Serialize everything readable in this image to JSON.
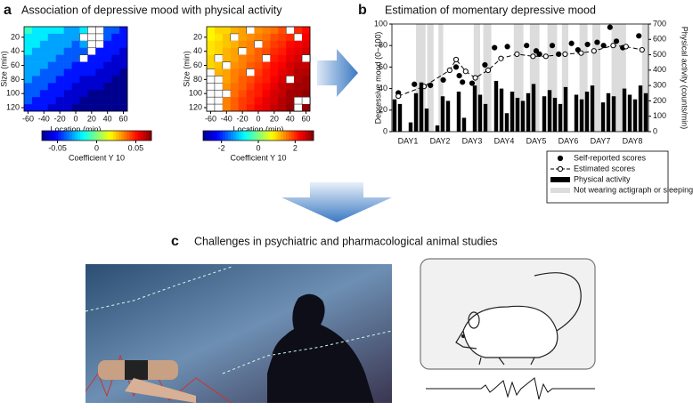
{
  "panels": {
    "a": {
      "label": "a",
      "title": "Association of depressive mood with physical activity"
    },
    "b": {
      "label": "b",
      "title": "Estimation of momentary depressive mood"
    },
    "c": {
      "label": "c",
      "title": "Challenges in psychiatric and pharmacological animal studies"
    }
  },
  "chart_data": [
    {
      "type": "heatmap",
      "x": [
        -60,
        -50,
        -40,
        -30,
        -20,
        -10,
        0,
        10,
        20,
        30,
        40,
        50,
        60
      ],
      "y": [
        10,
        20,
        30,
        40,
        50,
        60,
        70,
        80,
        90,
        100,
        110,
        120
      ],
      "values": [
        [
          -0.01,
          -0.02,
          -0.02,
          -0.02,
          -0.02,
          -0.03,
          -0.03,
          -0.02,
          null,
          null,
          -0.04,
          -0.04,
          -0.05
        ],
        [
          -0.02,
          -0.02,
          -0.02,
          -0.03,
          -0.03,
          -0.03,
          -0.03,
          null,
          null,
          null,
          -0.04,
          -0.05,
          -0.05
        ],
        [
          -0.02,
          -0.02,
          -0.03,
          -0.03,
          -0.03,
          -0.03,
          -0.04,
          -0.03,
          null,
          null,
          -0.05,
          -0.05,
          -0.05
        ],
        [
          -0.02,
          -0.03,
          -0.03,
          -0.03,
          -0.03,
          -0.04,
          -0.04,
          -0.04,
          null,
          -0.05,
          -0.05,
          -0.05,
          -0.06
        ],
        [
          -0.03,
          -0.03,
          -0.03,
          -0.03,
          -0.04,
          -0.04,
          -0.04,
          null,
          -0.05,
          -0.05,
          -0.05,
          -0.06,
          -0.06
        ],
        [
          -0.03,
          -0.03,
          -0.03,
          -0.04,
          -0.04,
          -0.04,
          -0.05,
          -0.05,
          -0.05,
          -0.05,
          -0.06,
          -0.06,
          -0.06
        ],
        [
          -0.03,
          -0.03,
          -0.04,
          -0.04,
          -0.04,
          -0.05,
          -0.05,
          -0.05,
          -0.05,
          -0.06,
          -0.06,
          -0.06,
          -0.07
        ],
        [
          -0.03,
          -0.04,
          -0.04,
          -0.04,
          -0.05,
          -0.05,
          -0.05,
          -0.06,
          -0.06,
          -0.06,
          -0.06,
          -0.07,
          -0.07
        ],
        [
          -0.04,
          -0.04,
          -0.04,
          -0.05,
          -0.05,
          -0.05,
          -0.06,
          -0.06,
          -0.06,
          -0.06,
          -0.07,
          -0.07,
          -0.07
        ],
        [
          -0.04,
          -0.04,
          -0.05,
          -0.05,
          -0.05,
          -0.06,
          -0.06,
          -0.06,
          -0.07,
          -0.07,
          -0.07,
          -0.07,
          -0.07
        ],
        [
          -0.04,
          -0.05,
          -0.05,
          -0.05,
          -0.06,
          -0.06,
          -0.06,
          -0.07,
          -0.07,
          -0.07,
          -0.07,
          -0.07,
          -0.07
        ],
        [
          -0.05,
          -0.05,
          -0.05,
          -0.06,
          -0.06,
          -0.06,
          -0.07,
          -0.07,
          -0.07,
          -0.07,
          -0.07,
          -0.07,
          -0.07
        ]
      ],
      "xlim": [
        -65,
        65
      ],
      "ylim": [
        5,
        125
      ],
      "xticks": [
        -60,
        -40,
        -20,
        0,
        20,
        40,
        60
      ],
      "yticks": [
        20,
        40,
        60,
        80,
        100,
        120
      ],
      "xlabel": "Location (min)",
      "ylabel": "Size (min)",
      "colorbar": {
        "lim": [
          -0.07,
          0.07
        ],
        "ticks": [
          -0.05,
          0,
          0.05
        ],
        "label": "Coefficient Y 10"
      }
    },
    {
      "type": "heatmap",
      "x": [
        -60,
        -50,
        -40,
        -30,
        -20,
        -10,
        0,
        10,
        20,
        30,
        40,
        50,
        60
      ],
      "y": [
        10,
        20,
        30,
        40,
        50,
        60,
        70,
        80,
        90,
        100,
        110,
        120
      ],
      "values": [
        [
          0.8,
          1.0,
          1.0,
          1.2,
          1.3,
          null,
          1.4,
          1.5,
          1.6,
          1.8,
          null,
          2.0,
          2.2
        ],
        [
          0.8,
          0.9,
          1.1,
          null,
          1.3,
          1.4,
          1.5,
          1.6,
          1.8,
          1.9,
          2.0,
          null,
          2.3
        ],
        [
          0.9,
          1.0,
          1.1,
          1.2,
          1.4,
          1.5,
          null,
          1.7,
          1.9,
          2.0,
          2.2,
          2.3,
          2.4
        ],
        [
          0.9,
          1.0,
          1.2,
          1.3,
          null,
          1.5,
          1.7,
          1.8,
          2.0,
          2.1,
          2.3,
          2.4,
          2.5
        ],
        [
          1.0,
          null,
          1.2,
          1.3,
          1.5,
          1.6,
          1.7,
          null,
          2.1,
          2.2,
          2.4,
          2.5,
          null
        ],
        [
          1.0,
          1.1,
          null,
          1.4,
          1.5,
          1.7,
          1.8,
          2.0,
          2.2,
          2.3,
          2.5,
          2.6,
          2.6
        ],
        [
          null,
          1.2,
          1.3,
          1.5,
          1.6,
          null,
          1.9,
          2.1,
          2.2,
          2.4,
          2.5,
          2.7,
          2.7
        ],
        [
          null,
          null,
          1.3,
          1.5,
          1.7,
          1.8,
          2.0,
          2.1,
          2.3,
          2.5,
          null,
          2.7,
          2.8
        ],
        [
          null,
          null,
          1.4,
          1.6,
          1.7,
          1.9,
          2.1,
          2.2,
          2.4,
          2.6,
          2.7,
          2.8,
          2.8
        ],
        [
          null,
          null,
          null,
          1.6,
          1.8,
          2.0,
          2.1,
          2.3,
          2.5,
          2.6,
          2.8,
          2.8,
          2.9
        ],
        [
          null,
          null,
          1.5,
          1.7,
          1.9,
          2.0,
          2.2,
          2.4,
          2.5,
          2.7,
          2.8,
          null,
          null
        ],
        [
          null,
          null,
          1.5,
          1.7,
          1.9,
          2.1,
          2.3,
          2.4,
          2.6,
          2.7,
          2.9,
          null,
          2.9
        ]
      ],
      "xlim": [
        -65,
        65
      ],
      "ylim": [
        5,
        125
      ],
      "xticks": [
        -60,
        -40,
        -20,
        0,
        20,
        40,
        60
      ],
      "yticks": [
        20,
        40,
        60,
        80,
        100,
        120
      ],
      "xlabel": "Location (min)",
      "ylabel": "Size (min)",
      "colorbar": {
        "lim": [
          -3,
          3
        ],
        "ticks": [
          -2,
          0,
          2
        ],
        "label": "Coefficient Y 10"
      }
    },
    {
      "type": "line",
      "xlim": [
        0,
        8
      ],
      "xticks": [
        {
          "value": 0.5,
          "label": "DAY1"
        },
        {
          "value": 1.5,
          "label": "DAY2"
        },
        {
          "value": 2.5,
          "label": "DAY3"
        },
        {
          "value": 3.5,
          "label": "DAY4"
        },
        {
          "value": 4.5,
          "label": "DAY5"
        },
        {
          "value": 5.5,
          "label": "DAY6"
        },
        {
          "value": 6.5,
          "label": "DAY7"
        },
        {
          "value": 7.5,
          "label": "DAY8"
        }
      ],
      "ylim": [
        0,
        100
      ],
      "yticks": [
        0,
        20,
        40,
        60,
        80,
        100
      ],
      "y2lim": [
        0,
        700
      ],
      "y2ticks": [
        0,
        100,
        200,
        300,
        400,
        500,
        600,
        700
      ],
      "ylabel": "Depressive mood (0−100)",
      "y2label": "Physical activity (counts/min)",
      "legend": "bottom-right",
      "bands": {
        "name": "Not wearing actigraph or sleeping",
        "color": "#dcdcdc",
        "ranges": [
          [
            0.75,
            1.05
          ],
          [
            1.1,
            1.3
          ],
          [
            1.45,
            1.6
          ],
          [
            2.55,
            2.75
          ],
          [
            2.85,
            3.1
          ],
          [
            3.8,
            4.1
          ],
          [
            4.3,
            4.6
          ],
          [
            4.85,
            5.15
          ],
          [
            5.3,
            5.5
          ],
          [
            5.85,
            6.1
          ],
          [
            6.25,
            6.5
          ],
          [
            6.85,
            7.3
          ],
          [
            7.8,
            8.0
          ]
        ]
      },
      "series": [
        {
          "name": "Self-reported scores",
          "color": "#000000",
          "marker": "filled",
          "x": [
            0.2,
            0.7,
            1.2,
            1.6,
            2.0,
            2.1,
            2.2,
            2.5,
            2.9,
            3.2,
            3.6,
            4.2,
            4.5,
            4.6,
            5.0,
            5.2,
            5.6,
            5.8,
            6.1,
            6.4,
            6.6,
            6.8,
            7.0,
            7.2,
            7.7
          ],
          "values": [
            36,
            44,
            43,
            48,
            60,
            52,
            46,
            45,
            62,
            78,
            79,
            80,
            75,
            72,
            80,
            72,
            82,
            76,
            81,
            83,
            80,
            97,
            84,
            78,
            89
          ]
        },
        {
          "name": "Estimated scores",
          "color": "#000000",
          "marker": "open",
          "x": [
            0.2,
            1.0,
            1.8,
            2.0,
            2.3,
            2.6,
            3.0,
            3.4,
            3.9,
            4.4,
            4.8,
            5.4,
            5.9,
            6.3,
            6.9,
            7.3,
            7.8
          ],
          "values": [
            33,
            42,
            57,
            67,
            56,
            50,
            57,
            68,
            72,
            70,
            70,
            72,
            73,
            75,
            80,
            79,
            76
          ]
        },
        {
          "name": "Physical activity",
          "color": "#000000",
          "axis": "y2",
          "values": [
            210,
            180,
            0,
            60,
            250,
            320,
            150,
            0,
            40,
            230,
            200,
            0,
            260,
            90,
            0,
            300,
            240,
            180,
            0,
            330,
            280,
            120,
            260,
            220,
            200,
            250,
            310,
            0,
            230,
            270,
            220,
            180,
            290,
            0,
            240,
            210,
            260,
            300,
            0,
            190,
            250,
            230,
            0,
            280,
            240,
            210,
            300,
            250
          ]
        }
      ]
    }
  ]
}
